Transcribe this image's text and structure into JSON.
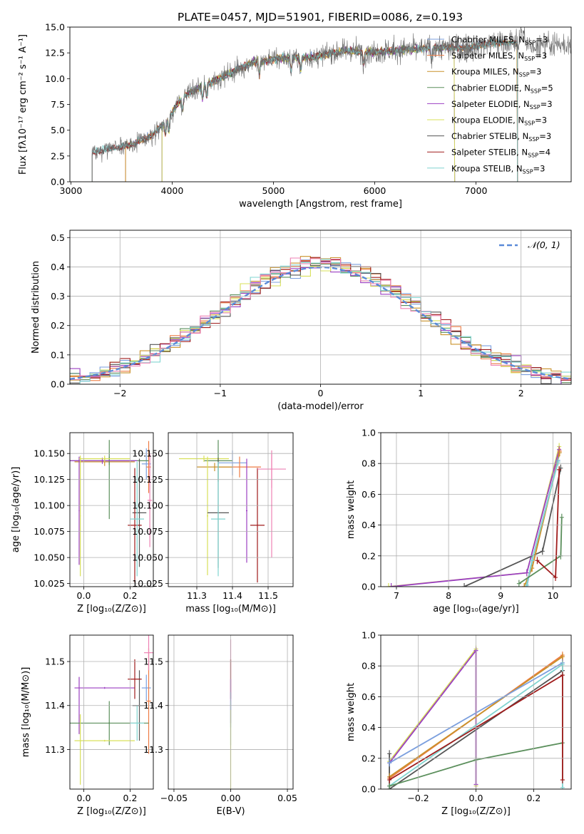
{
  "colors": {
    "Chabrier MILES": "#7b9fde",
    "Salpeter MILES": "#ee7c44",
    "Kroupa MILES": "#c9922b",
    "Chabrier ELODIE": "#5b8f5c",
    "Salpeter ELODIE": "#9b3fc2",
    "Kroupa ELODIE": "#d8e05a",
    "Chabrier STELIB": "#555555",
    "Salpeter STELIB": "#a01c1c",
    "Kroupa STELIB": "#80d4d0",
    "pink": "#ee82b4"
  },
  "chart_data": [
    {
      "id": "spectrum",
      "type": "line",
      "title": "PLATE=0457, MJD=51901, FIBERID=0086, z=0.193",
      "xlabel": "wavelength [Angstrom, rest frame]",
      "ylabel": "Flux [fλ10⁻¹⁷ erg cm⁻² s⁻¹ A⁻¹]",
      "xlim": [
        2990,
        7940
      ],
      "ylim": [
        0,
        15
      ],
      "xticks": [
        "3000",
        "4000",
        "5000",
        "6000",
        "7000"
      ],
      "yticks": [
        "0.0",
        "2.5",
        "5.0",
        "7.5",
        "10.0",
        "12.5",
        "15.0"
      ],
      "legend_position": "right",
      "legend": [
        {
          "name": "Chabrier MILES",
          "sub": "SSP",
          "val": "=3"
        },
        {
          "name": "Salpeter MILES",
          "sub": "SSP",
          "val": "=3"
        },
        {
          "name": "Kroupa MILES",
          "sub": "SSP",
          "val": "=3"
        },
        {
          "name": "Chabrier ELODIE",
          "sub": "SSP",
          "val": "=5"
        },
        {
          "name": "Salpeter ELODIE",
          "sub": "SSP",
          "val": "=3"
        },
        {
          "name": "Kroupa ELODIE",
          "sub": "SSP",
          "val": "=3"
        },
        {
          "name": "Chabrier STELIB",
          "sub": "SSP",
          "val": "=3"
        },
        {
          "name": "Salpeter STELIB",
          "sub": "SSP",
          "val": "=4"
        },
        {
          "name": "Kroupa STELIB",
          "sub": "SSP",
          "val": "=3"
        }
      ],
      "nssp_label": "N",
      "continuum": {
        "x": [
          3210,
          3400,
          3600,
          3800,
          3950,
          4100,
          4300,
          4500,
          4800,
          5100,
          5400,
          5700,
          6000,
          6300,
          6600,
          6900,
          7200,
          7400
        ],
        "y": [
          2.9,
          3.2,
          3.6,
          4.5,
          6.0,
          8.2,
          9.3,
          10.2,
          11.6,
          12.0,
          12.1,
          12.7,
          12.6,
          12.8,
          13.0,
          13.0,
          13.5,
          13.5
        ]
      },
      "model_cutoffs": {
        "Chabrier MILES": [
          3540,
          7410
        ],
        "Salpeter MILES": [
          3540,
          7410
        ],
        "Kroupa MILES": [
          3540,
          7410
        ],
        "Chabrier ELODIE": [
          3900,
          6790
        ],
        "Salpeter ELODIE": [
          3900,
          6790
        ],
        "Kroupa ELODIE": [
          3900,
          6790
        ],
        "Chabrier STELIB": [
          3210,
          7410
        ],
        "Salpeter STELIB": [
          3210,
          7410
        ],
        "Kroupa STELIB": [
          3210,
          7410
        ]
      }
    },
    {
      "id": "residuals",
      "type": "line",
      "xlabel": "(data-model)/error",
      "ylabel": "Normed distribution",
      "xlim": [
        -2.5,
        2.5
      ],
      "ylim": [
        0,
        0.525
      ],
      "xticks": [
        "−2",
        "−1",
        "0",
        "1",
        "2"
      ],
      "yticks": [
        "0.0",
        "0.1",
        "0.2",
        "0.3",
        "0.4",
        "0.5"
      ],
      "bin_width": 0.1,
      "gaussian_label": "𝒩(0, 1)",
      "legend_position": "top-right"
    },
    {
      "id": "age_vs_Z",
      "type": "scatter",
      "xlabel": "Z [log₁₀(Z/Z⊙)]",
      "ylabel": "age  [log₁₀(age/yr)]",
      "xlim": [
        -0.06,
        0.3
      ],
      "ylim": [
        10.022,
        10.17
      ],
      "xticks": [
        "0.0",
        "0.2"
      ],
      "yticks": [
        "10.025",
        "10.050",
        "10.075",
        "10.100",
        "10.125",
        "10.150"
      ],
      "points": [
        {
          "s": "Chabrier MILES",
          "x": 0.27,
          "xe": 0.02,
          "y": 10.14,
          "ye": 0.015
        },
        {
          "s": "Salpeter MILES",
          "x": 0.28,
          "xe": 0.01,
          "y": 10.137,
          "ye": 0.025
        },
        {
          "s": "Kroupa MILES",
          "x": 0.09,
          "xe": 0.13,
          "y": 10.142,
          "ye": 0.004
        },
        {
          "s": "Chabrier ELODIE",
          "x": 0.11,
          "xe": 0.17,
          "y": 10.143,
          "ye": 0.004
        },
        {
          "s": "Chabrier ELODIE",
          "x": 0.11,
          "xe": 0.002,
          "y": 10.125,
          "ye": 0.038
        },
        {
          "s": "Salpeter ELODIE",
          "x": -0.02,
          "xe": 0.002,
          "y": 10.095,
          "ye": 0.052
        },
        {
          "s": "Salpeter ELODIE",
          "x": 0.08,
          "xe": 0.15,
          "y": 10.143,
          "ye": 0.003
        },
        {
          "s": "Kroupa ELODIE",
          "x": -0.015,
          "xe": 0.002,
          "y": 10.09,
          "ye": 0.058
        },
        {
          "s": "Kroupa ELODIE",
          "x": 0.09,
          "xe": 0.11,
          "y": 10.145,
          "ye": 0.003
        },
        {
          "s": "Chabrier STELIB",
          "x": 0.24,
          "xe": 0.03,
          "y": 10.093,
          "ye": 0.052
        },
        {
          "s": "Salpeter STELIB",
          "x": 0.22,
          "xe": 0.03,
          "y": 10.081,
          "ye": 0.055
        },
        {
          "s": "Kroupa STELIB",
          "x": 0.23,
          "xe": 0.03,
          "y": 10.087,
          "ye": 0.055
        },
        {
          "s": "pink",
          "x": 0.285,
          "xe": 0.01,
          "y": 10.105,
          "ye": 0.045
        }
      ]
    },
    {
      "id": "age_vs_mass",
      "type": "scatter",
      "xlabel": "mass [log₁₀(M/M⊙)]",
      "ylabel": "",
      "xlim": [
        11.22,
        11.57
      ],
      "ylim": [
        10.022,
        10.17
      ],
      "xticks": [
        "11.3",
        "11.4",
        "11.5"
      ],
      "yticks": [
        "10.025",
        "10.050",
        "10.075",
        "10.100",
        "10.125",
        "10.150"
      ],
      "points": [
        {
          "s": "Chabrier MILES",
          "x": 11.4,
          "xe": 0.04,
          "y": 10.141,
          "ye": 0.012
        },
        {
          "s": "Salpeter MILES",
          "x": 11.42,
          "xe": 0.06,
          "y": 10.137,
          "ye": 0.01
        },
        {
          "s": "Kroupa MILES",
          "x": 11.35,
          "xe": 0.05,
          "y": 10.137,
          "ye": 0.004
        },
        {
          "s": "Chabrier ELODIE",
          "x": 11.36,
          "xe": 0.04,
          "y": 10.143,
          "ye": 0.02
        },
        {
          "s": "Salpeter ELODIE",
          "x": 11.44,
          "xe": 0.002,
          "y": 10.095,
          "ye": 0.05
        },
        {
          "s": "Kroupa ELODIE",
          "x": 11.32,
          "xe": 0.07,
          "y": 10.145,
          "ye": 0.003
        },
        {
          "s": "Kroupa ELODIE",
          "x": 11.33,
          "xe": 0.002,
          "y": 10.09,
          "ye": 0.057
        },
        {
          "s": "Chabrier STELIB",
          "x": 11.36,
          "xe": 0.03,
          "y": 10.093,
          "ye": 0.053
        },
        {
          "s": "Salpeter STELIB",
          "x": 11.47,
          "xe": 0.02,
          "y": 10.081,
          "ye": 0.055
        },
        {
          "s": "Kroupa STELIB",
          "x": 11.36,
          "xe": 0.02,
          "y": 10.087,
          "ye": 0.055
        },
        {
          "s": "pink",
          "x": 11.51,
          "xe": 0.04,
          "y": 10.135,
          "ye": 0.018
        },
        {
          "s": "pink",
          "x": 11.51,
          "xe": 0.002,
          "y": 10.1,
          "ye": 0.05
        }
      ]
    },
    {
      "id": "mass_weight_vs_age",
      "type": "line",
      "xlabel": "age  [log₁₀(age/yr)]",
      "ylabel": "mass weight",
      "xlim": [
        6.7,
        10.35
      ],
      "ylim": [
        0,
        1.0
      ],
      "xticks": [
        "7",
        "8",
        "9",
        "10"
      ],
      "yticks": [
        "0.0",
        "0.2",
        "0.4",
        "0.6",
        "0.8",
        "1.0"
      ],
      "series": [
        {
          "s": "Kroupa ELODIE",
          "x": [
            6.85,
            9.5,
            10.12
          ],
          "y": [
            0.0,
            0.09,
            0.91
          ]
        },
        {
          "s": "Salpeter ELODIE",
          "x": [
            6.9,
            9.5,
            10.12
          ],
          "y": [
            0.0,
            0.09,
            0.89
          ]
        },
        {
          "s": "Chabrier STELIB",
          "x": [
            8.3,
            9.8,
            10.15
          ],
          "y": [
            0.0,
            0.23,
            0.77
          ]
        },
        {
          "s": "Salpeter MILES",
          "x": [
            9.45,
            9.6,
            10.13
          ],
          "y": [
            0.0,
            0.12,
            0.88
          ]
        },
        {
          "s": "Kroupa MILES",
          "x": [
            9.45,
            9.6,
            10.13
          ],
          "y": [
            0.0,
            0.12,
            0.87
          ]
        },
        {
          "s": "Chabrier MILES",
          "x": [
            9.5,
            9.6,
            10.1
          ],
          "y": [
            0.0,
            0.17,
            0.82
          ]
        },
        {
          "s": "Kroupa STELIB",
          "x": [
            9.5,
            9.6,
            10.1
          ],
          "y": [
            0.01,
            0.17,
            0.81
          ]
        },
        {
          "s": "Chabrier ELODIE",
          "x": [
            9.35,
            10.15,
            10.17
          ],
          "y": [
            0.02,
            0.2,
            0.45
          ]
        },
        {
          "s": "Salpeter STELIB",
          "x": [
            9.7,
            10.05,
            10.12
          ],
          "y": [
            0.17,
            0.06,
            0.76
          ]
        }
      ]
    },
    {
      "id": "mass_vs_Z",
      "type": "scatter",
      "xlabel": "Z [log₁₀(Z/Z⊙)]",
      "ylabel": "mass [log₁₀(M/M⊙)]",
      "xlim": [
        -0.06,
        0.3
      ],
      "ylim": [
        11.21,
        11.56
      ],
      "xticks": [
        "0.0",
        "0.2"
      ],
      "yticks": [
        "11.3",
        "11.4",
        "11.5"
      ],
      "points": [
        {
          "s": "Chabrier MILES",
          "x": 0.27,
          "xe": 0.02,
          "y": 11.44,
          "ye": 0.03
        },
        {
          "s": "Salpeter MILES",
          "x": 0.28,
          "xe": 0.01,
          "y": 11.41,
          "ye": 0.12
        },
        {
          "s": "Salpeter ELODIE",
          "x": 0.09,
          "xe": 0.13,
          "y": 11.44,
          "ye": 0.002
        },
        {
          "s": "Salpeter ELODIE",
          "x": -0.02,
          "xe": 0.002,
          "y": 11.4,
          "ye": 0.065
        },
        {
          "s": "Chabrier ELODIE",
          "x": 0.11,
          "xe": 0.17,
          "y": 11.36,
          "ye": 0.002
        },
        {
          "s": "Chabrier ELODIE",
          "x": 0.11,
          "xe": 0.002,
          "y": 11.36,
          "ye": 0.05
        },
        {
          "s": "Kroupa ELODIE",
          "x": 0.09,
          "xe": 0.13,
          "y": 11.32,
          "ye": 0.002
        },
        {
          "s": "Kroupa ELODIE",
          "x": -0.015,
          "xe": 0.002,
          "y": 11.3,
          "ye": 0.08
        },
        {
          "s": "Chabrier STELIB",
          "x": 0.24,
          "xe": 0.03,
          "y": 11.4,
          "ye": 0.08
        },
        {
          "s": "Salpeter STELIB",
          "x": 0.22,
          "xe": 0.03,
          "y": 11.46,
          "ye": 0.045
        },
        {
          "s": "Kroupa STELIB",
          "x": 0.23,
          "xe": 0.03,
          "y": 11.36,
          "ye": 0.04
        },
        {
          "s": "pink",
          "x": 0.28,
          "xe": 0.02,
          "y": 11.52,
          "ye": 0.04
        }
      ]
    },
    {
      "id": "mass_vs_ebv",
      "type": "scatter",
      "xlabel": "E(B-V)",
      "ylabel": "",
      "xlim": [
        -0.055,
        0.055
      ],
      "ylim": [
        11.21,
        11.56
      ],
      "xticks": [
        "−0.05",
        "0.00",
        "0.05"
      ],
      "yticks": [
        "11.3",
        "11.4",
        "11.5"
      ],
      "points": [
        {
          "s": "pink",
          "x": 0.0,
          "xe": 0.0,
          "y": 11.47,
          "ye": 0.08
        },
        {
          "s": "Salpeter STELIB",
          "x": 0.0,
          "xe": 0.0,
          "y": 11.46,
          "ye": 0.045
        },
        {
          "s": "Salpeter ELODIE",
          "x": 0.0,
          "xe": 0.0,
          "y": 11.41,
          "ye": 0.05
        },
        {
          "s": "Chabrier MILES",
          "x": 0.0,
          "xe": 0.0,
          "y": 11.39,
          "ye": 0.04
        },
        {
          "s": "Kroupa STELIB",
          "x": 0.0,
          "xe": 0.0,
          "y": 11.36,
          "ye": 0.05
        },
        {
          "s": "Kroupa ELODIE",
          "x": 0.0,
          "xe": 0.0,
          "y": 11.3,
          "ye": 0.09
        }
      ]
    },
    {
      "id": "mass_weight_vs_Z",
      "type": "line",
      "xlabel": "Z [log₁₀(Z/Z⊙)]",
      "ylabel": "mass weight",
      "xlim": [
        -0.33,
        0.33
      ],
      "ylim": [
        0,
        1.0
      ],
      "xticks": [
        "−0.2",
        "0.0",
        "0.2"
      ],
      "yticks": [
        "0.0",
        "0.2",
        "0.4",
        "0.6",
        "0.8",
        "1.0"
      ],
      "series": [
        {
          "s": "Kroupa ELODIE",
          "x": [
            -0.3,
            0.0,
            0.0
          ],
          "y": [
            0.18,
            0.91,
            0.02
          ]
        },
        {
          "s": "Salpeter ELODIE",
          "x": [
            -0.3,
            0.0,
            0.0
          ],
          "y": [
            0.17,
            0.9,
            0.03
          ]
        },
        {
          "s": "Chabrier STELIB",
          "x": [
            -0.3,
            -0.3,
            0.3,
            0.3
          ],
          "y": [
            0.23,
            0.0,
            0.77,
            0.77
          ]
        },
        {
          "s": "Salpeter MILES",
          "x": [
            -0.3,
            0.3,
            0.3
          ],
          "y": [
            0.07,
            0.87,
            0.06
          ]
        },
        {
          "s": "Kroupa MILES",
          "x": [
            -0.3,
            0.3
          ],
          "y": [
            0.08,
            0.86
          ]
        },
        {
          "s": "Chabrier MILES",
          "x": [
            -0.3,
            0.3
          ],
          "y": [
            0.17,
            0.82
          ]
        },
        {
          "s": "Kroupa STELIB",
          "x": [
            -0.3,
            0.3,
            0.3
          ],
          "y": [
            0.02,
            0.81,
            0.01
          ]
        },
        {
          "s": "Chabrier ELODIE",
          "x": [
            -0.3,
            0.0,
            0.3
          ],
          "y": [
            0.02,
            0.19,
            0.3
          ]
        },
        {
          "s": "Salpeter STELIB",
          "x": [
            -0.3,
            0.3,
            0.3
          ],
          "y": [
            0.06,
            0.74,
            0.06
          ]
        }
      ]
    }
  ]
}
